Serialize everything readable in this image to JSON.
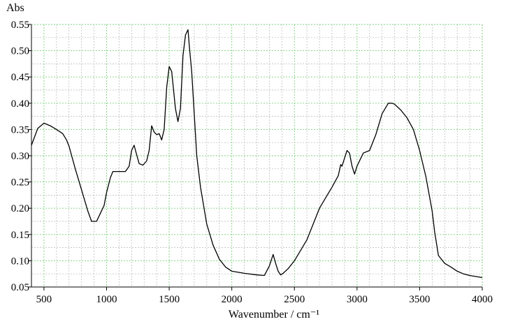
{
  "chart_data": {
    "type": "line",
    "title": "",
    "xlabel": "Wavenumber / cm⁻¹",
    "ylabel": "Abs",
    "xlim": [
      400,
      4000
    ],
    "ylim": [
      0.05,
      0.55
    ],
    "grid": true,
    "legend": "none",
    "x_ticks": [
      500,
      1000,
      1500,
      2000,
      2500,
      3000,
      3500,
      4000
    ],
    "y_ticks": [
      0.05,
      0.1,
      0.15,
      0.2,
      0.25,
      0.3,
      0.35,
      0.4,
      0.45,
      0.5,
      0.55
    ],
    "colors": {
      "line": "#000000",
      "grid_major": "#7ccf7c",
      "grid_minor": "#b5b5b5",
      "axis": "#000000"
    },
    "series": [
      {
        "x": [
          400,
          450,
          500,
          550,
          600,
          650,
          680,
          700,
          750,
          800,
          850,
          880,
          920,
          950,
          980,
          1000,
          1030,
          1050,
          1100,
          1150,
          1180,
          1200,
          1220,
          1240,
          1260,
          1290,
          1320,
          1340,
          1360,
          1380,
          1400,
          1420,
          1440,
          1460,
          1480,
          1500,
          1520,
          1550,
          1570,
          1590,
          1610,
          1630,
          1650,
          1660,
          1680,
          1700,
          1720,
          1750,
          1800,
          1850,
          1900,
          1950,
          2000,
          2100,
          2200,
          2260,
          2300,
          2330,
          2350,
          2370,
          2390,
          2410,
          2450,
          2500,
          2600,
          2700,
          2800,
          2850,
          2870,
          2880,
          2900,
          2920,
          2940,
          2960,
          2980,
          3000,
          3050,
          3100,
          3150,
          3200,
          3250,
          3280,
          3300,
          3350,
          3400,
          3450,
          3500,
          3550,
          3600,
          3620,
          3650,
          3700,
          3750,
          3800,
          3850,
          3900,
          3950,
          4000
        ],
        "y": [
          0.32,
          0.352,
          0.362,
          0.357,
          0.35,
          0.342,
          0.33,
          0.318,
          0.275,
          0.235,
          0.195,
          0.175,
          0.175,
          0.19,
          0.205,
          0.23,
          0.258,
          0.27,
          0.27,
          0.27,
          0.28,
          0.31,
          0.32,
          0.302,
          0.285,
          0.282,
          0.29,
          0.31,
          0.357,
          0.345,
          0.34,
          0.342,
          0.33,
          0.35,
          0.43,
          0.47,
          0.46,
          0.39,
          0.365,
          0.39,
          0.49,
          0.53,
          0.54,
          0.51,
          0.46,
          0.38,
          0.3,
          0.24,
          0.17,
          0.13,
          0.103,
          0.088,
          0.08,
          0.076,
          0.073,
          0.072,
          0.09,
          0.112,
          0.095,
          0.08,
          0.073,
          0.076,
          0.085,
          0.1,
          0.14,
          0.2,
          0.24,
          0.262,
          0.283,
          0.28,
          0.295,
          0.31,
          0.305,
          0.28,
          0.265,
          0.28,
          0.305,
          0.31,
          0.34,
          0.38,
          0.4,
          0.4,
          0.398,
          0.387,
          0.372,
          0.35,
          0.31,
          0.26,
          0.195,
          0.155,
          0.11,
          0.095,
          0.088,
          0.08,
          0.075,
          0.072,
          0.07,
          0.068
        ]
      }
    ]
  }
}
